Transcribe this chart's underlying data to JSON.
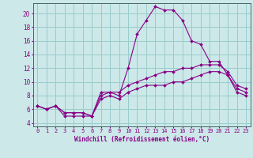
{
  "xlabel": "Windchill (Refroidissement éolien,°C)",
  "background_color": "#cce8e8",
  "grid_color": "#99cccc",
  "line_color": "#880088",
  "x_ticks": [
    0,
    1,
    2,
    3,
    4,
    5,
    6,
    7,
    8,
    9,
    10,
    11,
    12,
    13,
    14,
    15,
    16,
    17,
    18,
    19,
    20,
    21,
    22,
    23
  ],
  "y_ticks": [
    4,
    6,
    8,
    10,
    12,
    14,
    16,
    18,
    20
  ],
  "xlim": [
    -0.5,
    23.5
  ],
  "ylim": [
    3.5,
    21.5
  ],
  "curve1_x": [
    0,
    1,
    2,
    3,
    4,
    5,
    6,
    7,
    8,
    9,
    10,
    11,
    12,
    13,
    14,
    15,
    16,
    17,
    18,
    19,
    20,
    21,
    22,
    23
  ],
  "curve1_y": [
    6.5,
    6.0,
    6.5,
    5.0,
    5.0,
    5.0,
    5.0,
    8.5,
    8.5,
    8.0,
    12.0,
    17.0,
    19.0,
    21.0,
    20.5,
    20.5,
    19.0,
    16.0,
    15.5,
    13.0,
    13.0,
    11.0,
    9.0,
    8.5
  ],
  "curve2_x": [
    0,
    1,
    2,
    3,
    4,
    5,
    6,
    7,
    8,
    9,
    10,
    11,
    12,
    13,
    14,
    15,
    16,
    17,
    18,
    19,
    20,
    21,
    22,
    23
  ],
  "curve2_y": [
    6.5,
    6.0,
    6.5,
    5.5,
    5.5,
    5.5,
    5.0,
    8.0,
    8.5,
    8.5,
    9.5,
    10.0,
    10.5,
    11.0,
    11.5,
    11.5,
    12.0,
    12.0,
    12.5,
    12.5,
    12.5,
    11.5,
    9.5,
    9.0
  ],
  "curve3_x": [
    0,
    1,
    2,
    3,
    4,
    5,
    6,
    7,
    8,
    9,
    10,
    11,
    12,
    13,
    14,
    15,
    16,
    17,
    18,
    19,
    20,
    21,
    22,
    23
  ],
  "curve3_y": [
    6.5,
    6.0,
    6.5,
    5.5,
    5.5,
    5.5,
    5.0,
    7.5,
    8.0,
    7.5,
    8.5,
    9.0,
    9.5,
    9.5,
    9.5,
    10.0,
    10.0,
    10.5,
    11.0,
    11.5,
    11.5,
    11.0,
    8.5,
    8.0
  ],
  "tick_fontsize": 5.0,
  "xlabel_fontsize": 5.5
}
